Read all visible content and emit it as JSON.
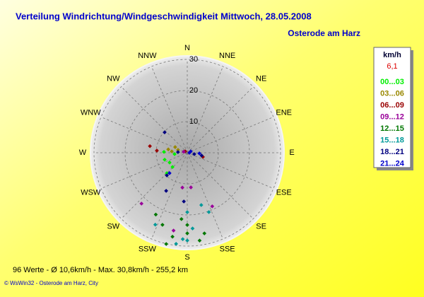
{
  "chart_data": {
    "type": "polar-scatter",
    "title": "Verteilung Windrichtung/Windgeschwindigkeit  Mittwoch, 28.05.2008",
    "subtitle": "Osterode am Harz",
    "directions": [
      "N",
      "NNE",
      "NE",
      "ENE",
      "E",
      "ESE",
      "SE",
      "SSE",
      "S",
      "SSW",
      "SW",
      "WSW",
      "W",
      "WNW",
      "NW",
      "NNW"
    ],
    "rlim": [
      0,
      30
    ],
    "rticks": [
      10,
      20,
      30
    ],
    "grid": true,
    "legend_title": "km/h",
    "legend_value": "6,1",
    "series": [
      {
        "name": "00...03",
        "color": "#00ee00",
        "directions": [
          272,
          225,
          241,
          226,
          253,
          264
        ],
        "values": [
          7.5,
          9.3,
          6.5,
          6.6,
          7.6,
          4.1
        ]
      },
      {
        "name": "03...06",
        "color": "#998800",
        "directions": [
          295,
          287,
          275,
          280
        ],
        "values": [
          4.3,
          3.1,
          5.0,
          6.2
        ]
      },
      {
        "name": "06...09",
        "color": "#990000",
        "directions": [
          280,
          274,
          304,
          105
        ],
        "values": [
          12.2,
          9.8,
          0.8,
          5.2
        ]
      },
      {
        "name": "09...12",
        "color": "#990099",
        "directions": [
          188,
          222,
          155,
          190,
          174,
          285
        ],
        "values": [
          11.3,
          22,
          19,
          25.4,
          11.2,
          1.2
        ]
      },
      {
        "name": "12...15",
        "color": "#007700",
        "directions": [
          207,
          199,
          190,
          180,
          180,
          172,
          193,
          185,
          168
        ],
        "values": [
          22.3,
          24.5,
          27.4,
          23.2,
          25.9,
          28.5,
          30.1,
          21.4,
          26.5
        ]
      },
      {
        "name": "15...18",
        "color": "#009999",
        "directions": [
          180,
          180,
          165,
          160,
          187,
          176,
          204,
          183
        ],
        "values": [
          19.1,
          28.2,
          17.4,
          20.3,
          29.5,
          24.4,
          25.3,
          27.8
        ]
      },
      {
        "name": "18...21",
        "color": "#000080",
        "directions": [
          312,
          222,
          209,
          184,
          274,
          101,
          101
        ],
        "values": [
          9.8,
          9.8,
          14.0,
          15.7,
          3.0,
          4.7,
          2.3
        ]
      },
      {
        "name": "21...24",
        "color": "#0000cc",
        "directions": [
          90,
          93,
          221,
          68
        ],
        "values": [
          0.7,
          3.9,
          8.7,
          1.2
        ]
      }
    ],
    "footer": "96 Werte   -   Ø 10,6km/h   -   Max. 30,8km/h   -   255,2 km",
    "credit": "© WsWin32  -  Osterode am Harz, City"
  }
}
